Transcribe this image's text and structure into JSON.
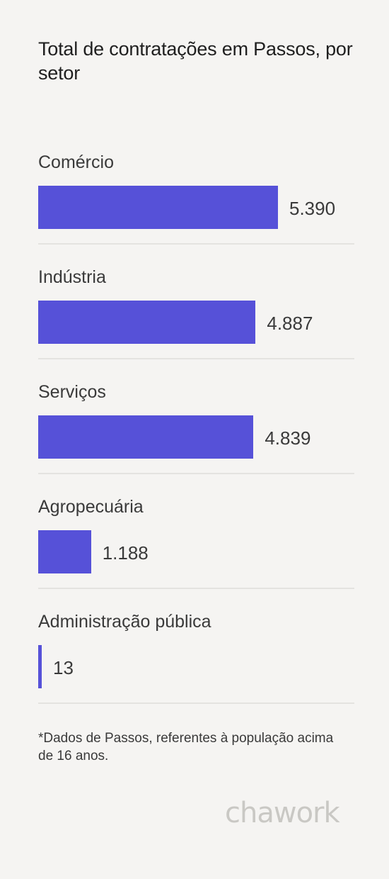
{
  "title": "Total de contratações em Passos, por setor",
  "chart_data": {
    "type": "bar",
    "orientation": "horizontal",
    "title": "Total de contratações em Passos, por setor",
    "categories": [
      "Comércio",
      "Indústria",
      "Serviços",
      "Agropecuária",
      "Administração pública"
    ],
    "values": [
      5390,
      4887,
      4839,
      1188,
      13
    ],
    "value_labels": [
      "5.390",
      "4.887",
      "4.839",
      "1.188",
      "13"
    ],
    "bar_color": "#5651d8",
    "xlim": [
      0,
      5390
    ],
    "grid": false,
    "legend": "none"
  },
  "footnote": "*Dados de Passos, referentes à população acima de 16 anos.",
  "logo": "chawork"
}
